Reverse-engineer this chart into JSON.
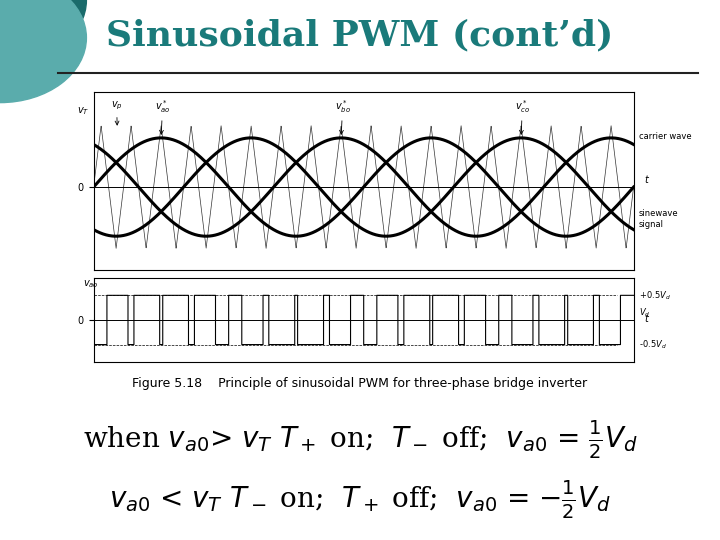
{
  "title": "Sinusoidal PWM (cont’d)",
  "title_color": "#1a7a7a",
  "title_fontsize": 26,
  "bg_color": "#ffffff",
  "circle_dark": "#1a6b6b",
  "circle_light": "#5aacac",
  "line1": "when $v_{a0}$> $v_T$ $T_+$ on;  $T_-$ off;  $v_{a0}$ = $\\frac{1}{2}V_d$",
  "line2": "$v_{a0}$ < $v_T$ $T_-$ on;  $T_+$ off;  $v_{a0}$ = $-\\frac{1}{2}V_d$",
  "text_fontsize": 20,
  "figure_caption": "Figure 5.18    Principle of sinusoidal PWM for three-phase bridge inverter",
  "caption_fontsize": 9,
  "hline_color": "#222222",
  "hline_lw": 1.5
}
